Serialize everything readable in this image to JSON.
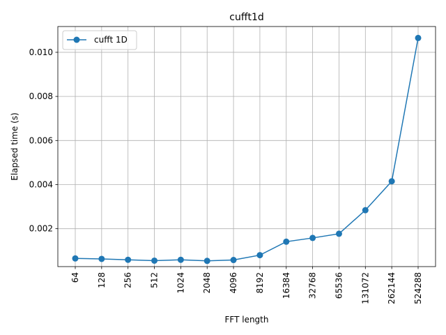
{
  "chart_data": {
    "type": "line",
    "title": "cufft1d",
    "xlabel": "FFT length",
    "ylabel": "Elapsed time (s)",
    "categories": [
      "64",
      "128",
      "256",
      "512",
      "1024",
      "2048",
      "4096",
      "8192",
      "16384",
      "32768",
      "65536",
      "131072",
      "262144",
      "524288"
    ],
    "series": [
      {
        "name": "cufft 1D",
        "color": "#1f77b4",
        "marker": "circle",
        "values": [
          0.00065,
          0.00063,
          0.00059,
          0.00055,
          0.00059,
          0.00054,
          0.00058,
          0.0008,
          0.00141,
          0.00158,
          0.00177,
          0.00284,
          0.00415,
          0.01065
        ]
      }
    ],
    "yticks": [
      0.002,
      0.004,
      0.006,
      0.008,
      0.01
    ],
    "ytick_labels": [
      "0.002",
      "0.004",
      "0.006",
      "0.008",
      "0.010"
    ],
    "ylim": [
      0.00028,
      0.01117
    ],
    "grid": true,
    "legend_position": "upper-left",
    "xtick_rotation": 90
  }
}
